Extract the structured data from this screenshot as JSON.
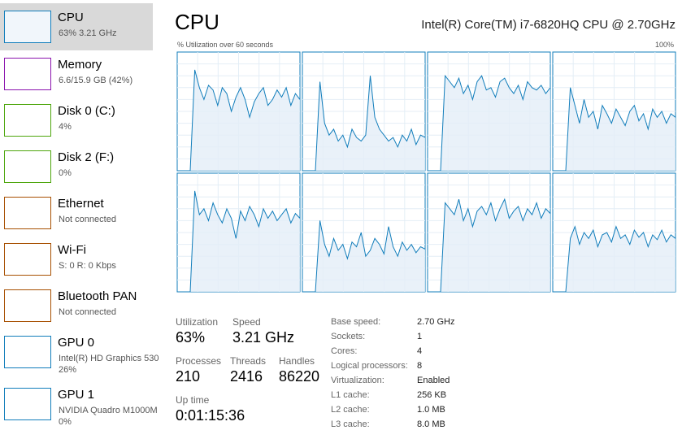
{
  "header": {
    "title": "CPU",
    "processor": "Intel(R) Core(TM) i7-6820HQ CPU @ 2.70GHz"
  },
  "graph": {
    "caption": "% Utilization over 60 seconds",
    "max_label": "100%",
    "ylim": [
      0,
      100
    ],
    "cores": [
      [
        0,
        85,
        70,
        60,
        72,
        68,
        55,
        70,
        65,
        50,
        62,
        70,
        60,
        45,
        58,
        65,
        70,
        55,
        60,
        68,
        62,
        70,
        55,
        65,
        60
      ],
      [
        0,
        75,
        40,
        30,
        35,
        25,
        30,
        20,
        35,
        28,
        25,
        30,
        80,
        45,
        35,
        30,
        25,
        28,
        20,
        30,
        25,
        35,
        22,
        30,
        28
      ],
      [
        0,
        80,
        75,
        70,
        78,
        65,
        72,
        60,
        75,
        80,
        68,
        70,
        62,
        75,
        78,
        70,
        65,
        72,
        60,
        75,
        70,
        68,
        72,
        65,
        70
      ],
      [
        0,
        70,
        55,
        40,
        60,
        45,
        50,
        35,
        55,
        48,
        40,
        52,
        45,
        38,
        50,
        55,
        42,
        48,
        35,
        52,
        45,
        50,
        40,
        48,
        45
      ],
      [
        0,
        85,
        65,
        70,
        60,
        75,
        65,
        58,
        70,
        62,
        45,
        68,
        60,
        72,
        65,
        55,
        70,
        62,
        68,
        60,
        65,
        70,
        58,
        66,
        62
      ],
      [
        0,
        60,
        40,
        30,
        45,
        35,
        40,
        28,
        42,
        38,
        50,
        30,
        35,
        45,
        40,
        32,
        55,
        38,
        30,
        42,
        35,
        40,
        33,
        38,
        36
      ],
      [
        0,
        75,
        70,
        65,
        78,
        60,
        70,
        55,
        68,
        72,
        65,
        75,
        60,
        70,
        78,
        62,
        68,
        72,
        60,
        70,
        65,
        75,
        62,
        70,
        66
      ],
      [
        0,
        45,
        55,
        40,
        50,
        45,
        52,
        38,
        48,
        50,
        42,
        55,
        45,
        48,
        40,
        52,
        46,
        50,
        38,
        48,
        44,
        52,
        42,
        48,
        45
      ]
    ]
  },
  "sidebar": [
    {
      "name": "CPU",
      "details": [
        "63% 3.21 GHz"
      ]
    },
    {
      "name": "Memory",
      "details": [
        "6.6/15.9 GB (42%)"
      ]
    },
    {
      "name": "Disk 0 (C:)",
      "details": [
        "4%"
      ]
    },
    {
      "name": "Disk 2 (F:)",
      "details": [
        "0%"
      ]
    },
    {
      "name": "Ethernet",
      "details": [
        "Not connected"
      ]
    },
    {
      "name": "Wi-Fi",
      "details": [
        "S: 0 R: 0 Kbps"
      ]
    },
    {
      "name": "Bluetooth PAN",
      "details": [
        "Not connected"
      ]
    },
    {
      "name": "GPU 0",
      "details": [
        "Intel(R) HD Graphics 530",
        "26%"
      ]
    },
    {
      "name": "GPU 1",
      "details": [
        "NVIDIA Quadro M1000M",
        "0%"
      ]
    }
  ],
  "stats": [
    {
      "label": "Utilization",
      "value": "63%"
    },
    {
      "label": "Speed",
      "value": "3.21 GHz"
    },
    {
      "label": "Processes",
      "value": "210"
    },
    {
      "label": "Threads",
      "value": "2416"
    },
    {
      "label": "Handles",
      "value": "86220"
    },
    {
      "label": "Up time",
      "value": "0:01:15:36"
    }
  ],
  "specs": [
    {
      "label": "Base speed:",
      "value": "2.70 GHz"
    },
    {
      "label": "Sockets:",
      "value": "1"
    },
    {
      "label": "Cores:",
      "value": "4"
    },
    {
      "label": "Logical processors:",
      "value": "8"
    },
    {
      "label": "Virtualization:",
      "value": "Enabled"
    },
    {
      "label": "L1 cache:",
      "value": "256 KB"
    },
    {
      "label": "L2 cache:",
      "value": "1.0 MB"
    },
    {
      "label": "L3 cache:",
      "value": "8.0 MB"
    }
  ]
}
